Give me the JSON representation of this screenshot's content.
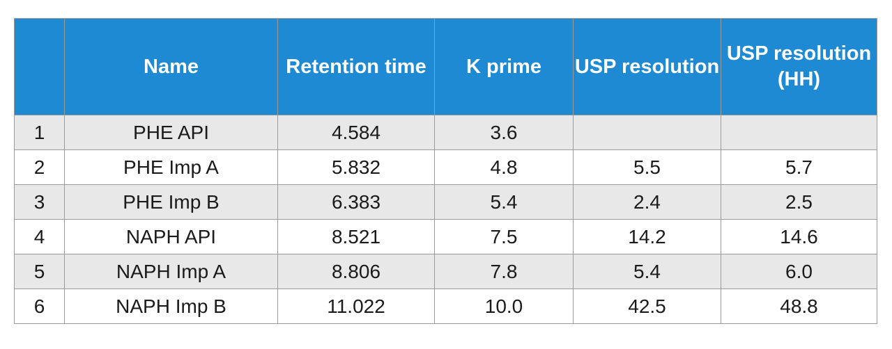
{
  "table": {
    "headers": [
      "",
      "Name",
      "Retention time",
      "K prime",
      "USP resolution",
      "USP resolution (HH)"
    ],
    "rows": [
      [
        "1",
        "PHE API",
        "4.584",
        "3.6",
        "",
        ""
      ],
      [
        "2",
        "PHE Imp A",
        "5.832",
        "4.8",
        "5.5",
        "5.7"
      ],
      [
        "3",
        "PHE Imp B",
        "6.383",
        "5.4",
        "2.4",
        "2.5"
      ],
      [
        "4",
        "NAPH API",
        "8.521",
        "7.5",
        "14.2",
        "14.6"
      ],
      [
        "5",
        "NAPH Imp A",
        "8.806",
        "7.8",
        "5.4",
        "6.0"
      ],
      [
        "6",
        "NAPH Imp B",
        "11.022",
        "10.0",
        "42.5",
        "48.8"
      ]
    ]
  },
  "colors": {
    "header_bg": "#1e8ad4",
    "header_text": "#ffffff",
    "row_alt_bg": "#e8e8e9",
    "border": "#9a9a9a"
  }
}
